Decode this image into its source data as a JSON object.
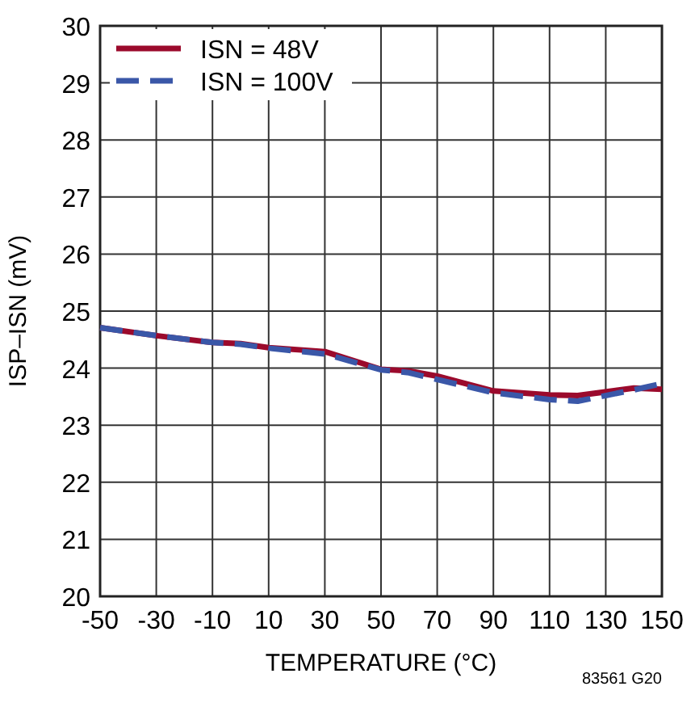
{
  "chart_data": {
    "type": "line",
    "xlabel": "TEMPERATURE (°C)",
    "ylabel": "ISP–ISN (mV)",
    "annotations": [
      "83561 G20"
    ],
    "x": [
      -50,
      -30,
      -10,
      0,
      10,
      30,
      50,
      60,
      70,
      90,
      110,
      120,
      140,
      150
    ],
    "series": [
      {
        "name": "ISN = 48V",
        "color": "#9b0a2c",
        "line_style": "solid",
        "values": [
          24.71,
          24.57,
          24.45,
          24.43,
          24.36,
          24.29,
          23.98,
          23.95,
          23.86,
          23.6,
          23.53,
          23.52,
          23.65,
          23.63
        ]
      },
      {
        "name": "ISN = 100V",
        "color": "#3a57a8",
        "line_style": "dashed",
        "values": [
          24.71,
          24.57,
          24.45,
          24.42,
          24.35,
          24.25,
          23.97,
          23.92,
          23.8,
          23.57,
          23.45,
          23.42,
          23.62,
          23.73
        ]
      }
    ],
    "xlim": [
      -50,
      150
    ],
    "xticks": [
      -50,
      -30,
      -10,
      10,
      30,
      50,
      70,
      90,
      110,
      130,
      150
    ],
    "ylim": [
      20,
      30
    ],
    "yticks": [
      20,
      21,
      22,
      23,
      24,
      25,
      26,
      27,
      28,
      29,
      30
    ],
    "grid": true,
    "legend": "top left"
  }
}
